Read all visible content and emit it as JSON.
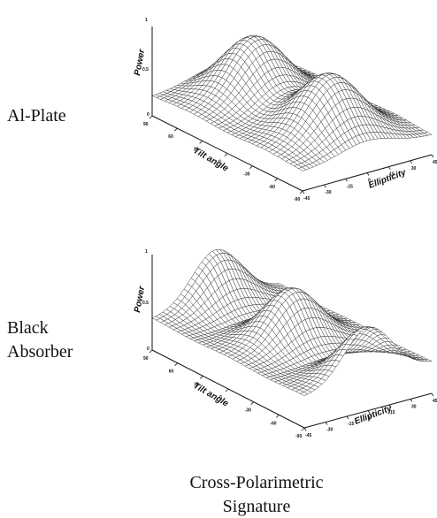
{
  "row_labels": {
    "top": [
      "Al-Plate"
    ],
    "bottom": [
      "Black",
      "Absorber"
    ]
  },
  "caption": [
    "Cross-Polarimetric",
    "Signature"
  ],
  "colors": {
    "mesh": "#2a2a2a",
    "axis": "#111111",
    "background": "#ffffff"
  },
  "chart_data": [
    {
      "type": "surface",
      "row_label": "Al-Plate",
      "zlabel": "Power",
      "xlabel": "Tilt angle",
      "ylabel": "Ellipticity",
      "zlim": [
        0,
        1
      ],
      "z_ticks": [
        "0",
        "0.5",
        "1"
      ],
      "x_ticks": [
        "90",
        "60",
        "30",
        "0",
        "-30",
        "-60",
        "-90"
      ],
      "y_ticks": [
        "-45",
        "-30",
        "-15",
        "0",
        "15",
        "30",
        "45"
      ],
      "surface": {
        "formula": "Power = 0.22 + 0.68 * exp(-((tilt - t0)/36)^2 - (ellipticity/26)^2) summed over t0 in centers",
        "tilt_range": [
          -90,
          90
        ],
        "ellipticity_range": [
          -45,
          45
        ],
        "peaks_tilt": [
          45,
          -45
        ],
        "peak_height": 0.9,
        "base": 0.22,
        "grid_tilt": 36,
        "grid_ellipticity": 36
      }
    },
    {
      "type": "surface",
      "row_label": "Black Absorber",
      "zlabel": "Power",
      "xlabel": "Tilt angle",
      "ylabel": "Ellipticity",
      "zlim": [
        0,
        1
      ],
      "z_ticks": [
        "0",
        "0.5",
        "1"
      ],
      "x_ticks": [
        "90",
        "60",
        "30",
        "0",
        "-30",
        "-60",
        "-90"
      ],
      "y_ticks": [
        "-45",
        "-30",
        "-15",
        "0",
        "15",
        "30",
        "45"
      ],
      "surface": {
        "formula": "Power = 0.32 + 0.55 * [max over t0 of exp(-((tilt - t0)/28)^2)] * exp(-(ellipticity/24)^2)",
        "tilt_range": [
          -90,
          90
        ],
        "ellipticity_range": [
          -45,
          45
        ],
        "peaks_tilt": [
          -90,
          0,
          90
        ],
        "peak_height": 0.87,
        "base": 0.32,
        "grid_tilt": 36,
        "grid_ellipticity": 36
      }
    }
  ]
}
